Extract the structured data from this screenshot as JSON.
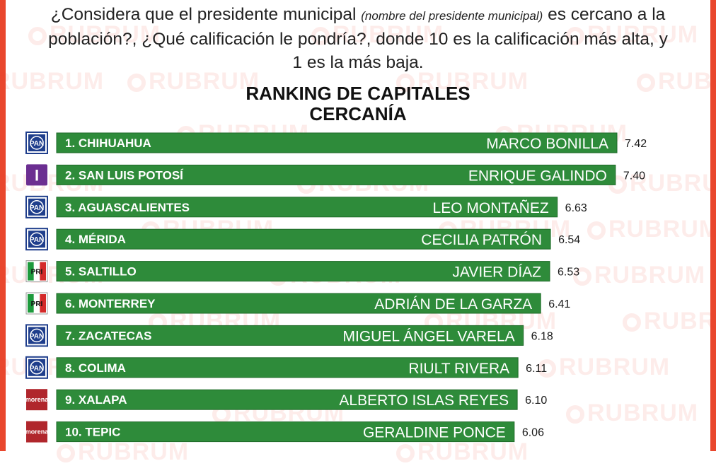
{
  "header": {
    "question_a": "¿Considera que el presidente municipal",
    "question_paren": "(nombre del presidente municipal)",
    "question_b": "es cercano a la población?, ¿Qué calificación le pondría?, donde 10 es la calificación más alta, y 1 es la más baja."
  },
  "watermark_text": "RUBRUM",
  "colors": {
    "bar": "#2e8b3a",
    "edge": "#e9472d",
    "pan": "#1f3e8c",
    "independent": "#6b2e91",
    "pri_green": "#1e9a3d",
    "pri_red": "#d42a2a",
    "morena": "#b0262c"
  },
  "chart_data": {
    "type": "bar",
    "orientation": "horizontal",
    "title": "RANKING DE CAPITALES",
    "subtitle": "CERCANÍA",
    "xlim": [
      0,
      10
    ],
    "grid": false,
    "legend": "none",
    "rows": [
      {
        "rank_label": "1. CHIHUAHUA",
        "person": "MARCO BONILLA",
        "value": 7.42,
        "value_label": "7.42",
        "party_icon": "pan-logo-icon",
        "party_text": "PAN"
      },
      {
        "rank_label": "2. SAN LUIS POTOSÍ",
        "person": "ENRIQUE GALINDO",
        "value": 7.4,
        "value_label": "7.40",
        "party_icon": "independent-logo-icon",
        "party_text": "I"
      },
      {
        "rank_label": "3. AGUASCALIENTES",
        "person": "LEO MONTAÑEZ",
        "value": 6.63,
        "value_label": "6.63",
        "party_icon": "pan-logo-icon",
        "party_text": "PAN"
      },
      {
        "rank_label": "4. MÉRIDA",
        "person": "CECILIA PATRÓN",
        "value": 6.54,
        "value_label": "6.54",
        "party_icon": "pan-logo-icon",
        "party_text": "PAN"
      },
      {
        "rank_label": "5. SALTILLO",
        "person": "JAVIER DÍAZ",
        "value": 6.53,
        "value_label": "6.53",
        "party_icon": "pri-logo-icon",
        "party_text": "PRI"
      },
      {
        "rank_label": "6. MONTERREY",
        "person": "ADRIÁN DE LA GARZA",
        "value": 6.41,
        "value_label": "6.41",
        "party_icon": "pri-logo-icon",
        "party_text": "PRI"
      },
      {
        "rank_label": "7. ZACATECAS",
        "person": "MIGUEL ÁNGEL VARELA",
        "value": 6.18,
        "value_label": "6.18",
        "party_icon": "pan-logo-icon",
        "party_text": "PAN"
      },
      {
        "rank_label": "8. COLIMA",
        "person": "RIULT RIVERA",
        "value": 6.11,
        "value_label": "6.11",
        "party_icon": "pan-logo-icon",
        "party_text": "PAN"
      },
      {
        "rank_label": "9. XALAPA",
        "person": "ALBERTO ISLAS REYES",
        "value": 6.1,
        "value_label": "6.10",
        "party_icon": "morena-logo-icon",
        "party_text": "morena"
      },
      {
        "rank_label": "10. TEPIC",
        "person": "GERALDINE PONCE",
        "value": 6.06,
        "value_label": "6.06",
        "party_icon": "morena-logo-icon",
        "party_text": "morena"
      }
    ]
  }
}
